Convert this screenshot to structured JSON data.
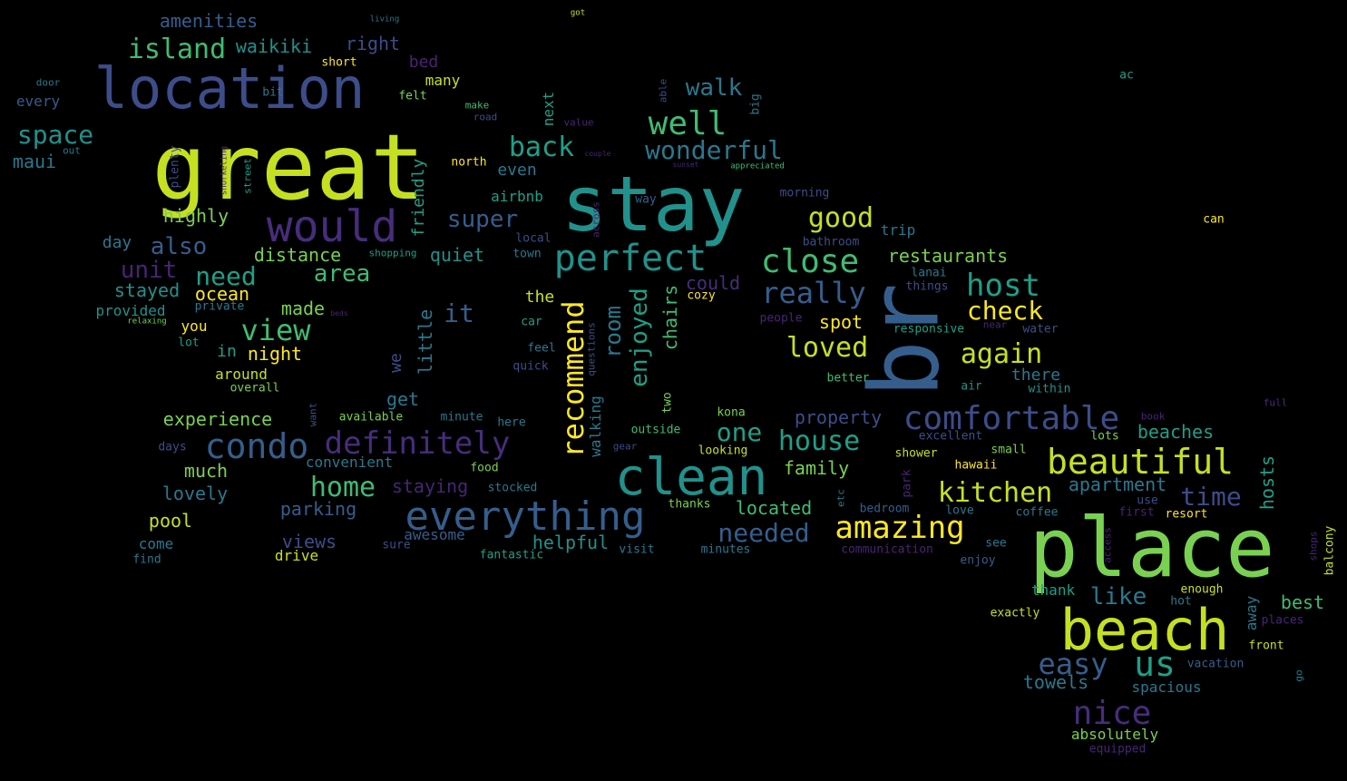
{
  "colors": {
    "background": "#000000",
    "palette": {
      "y": "#c5e021",
      "l": "#7ad151",
      "g": "#3fbc73",
      "t": "#1f9f88",
      "c": "#21918c",
      "s": "#2a788e",
      "b": "#355e8d",
      "i": "#3d4d8a",
      "p": "#472d7b",
      "d": "#482475",
      "o": "#fde725"
    }
  },
  "words": [
    {
      "text": "great",
      "color": "y"
    },
    {
      "text": "stay",
      "color": "c"
    },
    {
      "text": "place",
      "color": "l"
    },
    {
      "text": "br",
      "color": "b"
    },
    {
      "text": "location",
      "color": "i"
    },
    {
      "text": "beach",
      "color": "y"
    },
    {
      "text": "clean",
      "color": "c"
    },
    {
      "text": "would",
      "color": "p"
    },
    {
      "text": "everything",
      "color": "b"
    },
    {
      "text": "perfect",
      "color": "c"
    },
    {
      "text": "recommend",
      "color": "o"
    },
    {
      "text": "nice",
      "color": "p"
    },
    {
      "text": "comfortable",
      "color": "i"
    },
    {
      "text": "beautiful",
      "color": "y"
    },
    {
      "text": "condo",
      "color": "b"
    },
    {
      "text": "definitely",
      "color": "p"
    },
    {
      "text": "amazing",
      "color": "o"
    },
    {
      "text": "us",
      "color": "t"
    },
    {
      "text": "easy",
      "color": "b"
    },
    {
      "text": "close",
      "color": "g"
    },
    {
      "text": "well",
      "color": "g"
    },
    {
      "text": "host",
      "color": "t"
    },
    {
      "text": "really",
      "color": "b"
    },
    {
      "text": "view",
      "color": "g"
    },
    {
      "text": "kitchen",
      "color": "y"
    },
    {
      "text": "wonderful",
      "color": "s"
    },
    {
      "text": "back",
      "color": "t"
    },
    {
      "text": "island",
      "color": "g"
    },
    {
      "text": "space",
      "color": "c"
    },
    {
      "text": "house",
      "color": "t"
    },
    {
      "text": "time",
      "color": "i"
    },
    {
      "text": "home",
      "color": "g"
    },
    {
      "text": "needed",
      "color": "b"
    },
    {
      "text": "check",
      "color": "o"
    },
    {
      "text": "again",
      "color": "y"
    },
    {
      "text": "loved",
      "color": "y"
    },
    {
      "text": "good",
      "color": "y"
    },
    {
      "text": "like",
      "color": "s"
    },
    {
      "text": "super",
      "color": "b"
    },
    {
      "text": "walk",
      "color": "s"
    },
    {
      "text": "also",
      "color": "b"
    },
    {
      "text": "need",
      "color": "t"
    },
    {
      "text": "area",
      "color": "g"
    },
    {
      "text": "one",
      "color": "t"
    },
    {
      "text": "enjoyed",
      "color": "t"
    },
    {
      "text": "room",
      "color": "s"
    },
    {
      "text": "it",
      "color": "b"
    },
    {
      "text": "unit",
      "color": "d"
    },
    {
      "text": "amenities",
      "color": "b"
    },
    {
      "text": "waikiki",
      "color": "c"
    },
    {
      "text": "right",
      "color": "i"
    },
    {
      "text": "restaurants",
      "color": "l"
    },
    {
      "text": "beaches",
      "color": "t"
    },
    {
      "text": "hosts",
      "color": "t"
    },
    {
      "text": "apartment",
      "color": "s"
    },
    {
      "text": "property",
      "color": "i"
    },
    {
      "text": "family",
      "color": "l"
    },
    {
      "text": "located",
      "color": "g"
    },
    {
      "text": "helpful",
      "color": "c"
    },
    {
      "text": "distance",
      "color": "l"
    },
    {
      "text": "quiet",
      "color": "c"
    },
    {
      "text": "highly",
      "color": "l"
    },
    {
      "text": "maui",
      "color": "s"
    },
    {
      "text": "stayed",
      "color": "c"
    },
    {
      "text": "ocean",
      "color": "o"
    },
    {
      "text": "made",
      "color": "l"
    },
    {
      "text": "night",
      "color": "o"
    },
    {
      "text": "experience",
      "color": "l"
    },
    {
      "text": "much",
      "color": "l"
    },
    {
      "text": "lovely",
      "color": "s"
    },
    {
      "text": "pool",
      "color": "y"
    },
    {
      "text": "parking",
      "color": "b"
    },
    {
      "text": "views",
      "color": "i"
    },
    {
      "text": "drive",
      "color": "y"
    },
    {
      "text": "staying",
      "color": "d"
    },
    {
      "text": "chairs",
      "color": "g"
    },
    {
      "text": "walking",
      "color": "s"
    },
    {
      "text": "little",
      "color": "s"
    },
    {
      "text": "friendly",
      "color": "t"
    },
    {
      "text": "spot",
      "color": "o"
    },
    {
      "text": "best",
      "color": "g"
    },
    {
      "text": "towels",
      "color": "s"
    },
    {
      "text": "spacious",
      "color": "s"
    },
    {
      "text": "get",
      "color": "s"
    },
    {
      "text": "could",
      "color": "p"
    },
    {
      "text": "trip",
      "color": "s"
    },
    {
      "text": "day",
      "color": "s"
    },
    {
      "text": "even",
      "color": "s"
    },
    {
      "text": "airbnb",
      "color": "t"
    },
    {
      "text": "bed",
      "color": "d"
    },
    {
      "text": "there",
      "color": "s"
    },
    {
      "text": "lanai",
      "color": "s"
    },
    {
      "text": "things",
      "color": "i"
    },
    {
      "text": "responsive",
      "color": "t"
    },
    {
      "text": "we",
      "color": "i"
    },
    {
      "text": "in",
      "color": "t"
    },
    {
      "text": "you",
      "color": "o"
    },
    {
      "text": "around",
      "color": "y"
    },
    {
      "text": "overall",
      "color": "l"
    },
    {
      "text": "provided",
      "color": "c"
    },
    {
      "text": "private",
      "color": "s"
    },
    {
      "text": "the",
      "color": "y"
    },
    {
      "text": "plenty",
      "color": "i"
    },
    {
      "text": "street",
      "color": "t"
    },
    {
      "text": "snorkeling",
      "color": "p"
    },
    {
      "text": "short",
      "color": "o"
    },
    {
      "text": "many",
      "color": "y"
    },
    {
      "text": "felt",
      "color": "l"
    },
    {
      "text": "bit",
      "color": "s"
    },
    {
      "text": "door",
      "color": "s"
    },
    {
      "text": "every",
      "color": "b"
    },
    {
      "text": "out",
      "color": "s"
    },
    {
      "text": "make",
      "color": "g"
    },
    {
      "text": "road",
      "color": "i"
    },
    {
      "text": "next",
      "color": "t"
    },
    {
      "text": "able",
      "color": "i"
    },
    {
      "text": "big",
      "color": "s"
    },
    {
      "text": "value",
      "color": "d"
    },
    {
      "text": "couple",
      "color": "d"
    },
    {
      "text": "sunset",
      "color": "d"
    },
    {
      "text": "appreciated",
      "color": "g"
    },
    {
      "text": "north",
      "color": "o"
    },
    {
      "text": "way",
      "color": "b"
    },
    {
      "text": "morning",
      "color": "i"
    },
    {
      "text": "across",
      "color": "d"
    },
    {
      "text": "local",
      "color": "i"
    },
    {
      "text": "town",
      "color": "s"
    },
    {
      "text": "shopping",
      "color": "t"
    },
    {
      "text": "bathroom",
      "color": "i"
    },
    {
      "text": "cozy",
      "color": "o"
    },
    {
      "text": "people",
      "color": "d"
    },
    {
      "text": "car",
      "color": "t"
    },
    {
      "text": "feel",
      "color": "s"
    },
    {
      "text": "quick",
      "color": "i"
    },
    {
      "text": "questions",
      "color": "i"
    },
    {
      "text": "two",
      "color": "l"
    },
    {
      "text": "better",
      "color": "g"
    },
    {
      "text": "air",
      "color": "c"
    },
    {
      "text": "within",
      "color": "c"
    },
    {
      "text": "water",
      "color": "i"
    },
    {
      "text": "near",
      "color": "d"
    },
    {
      "text": "kona",
      "color": "l"
    },
    {
      "text": "outside",
      "color": "g"
    },
    {
      "text": "looking",
      "color": "y"
    },
    {
      "text": "gear",
      "color": "i"
    },
    {
      "text": "excellent",
      "color": "i"
    },
    {
      "text": "lots",
      "color": "l"
    },
    {
      "text": "small",
      "color": "l"
    },
    {
      "text": "shower",
      "color": "y"
    },
    {
      "text": "hawaii",
      "color": "o"
    },
    {
      "text": "park",
      "color": "d"
    },
    {
      "text": "etc",
      "color": "s"
    },
    {
      "text": "bedroom",
      "color": "b"
    },
    {
      "text": "love",
      "color": "s"
    },
    {
      "text": "coffee",
      "color": "s"
    },
    {
      "text": "first",
      "color": "d"
    },
    {
      "text": "resort",
      "color": "o"
    },
    {
      "text": "use",
      "color": "i"
    },
    {
      "text": "access",
      "color": "d"
    },
    {
      "text": "book",
      "color": "d"
    },
    {
      "text": "full",
      "color": "p"
    },
    {
      "text": "shops",
      "color": "d"
    },
    {
      "text": "balcony",
      "color": "y"
    },
    {
      "text": "communication",
      "color": "d"
    },
    {
      "text": "see",
      "color": "s"
    },
    {
      "text": "enjoy",
      "color": "b"
    },
    {
      "text": "thank",
      "color": "t"
    },
    {
      "text": "enough",
      "color": "y"
    },
    {
      "text": "hot",
      "color": "s"
    },
    {
      "text": "away",
      "color": "s"
    },
    {
      "text": "places",
      "color": "d"
    },
    {
      "text": "exactly",
      "color": "y"
    },
    {
      "text": "front",
      "color": "y"
    },
    {
      "text": "vacation",
      "color": "b"
    },
    {
      "text": "go",
      "color": "s"
    },
    {
      "text": "absolutely",
      "color": "l"
    },
    {
      "text": "equipped",
      "color": "d"
    },
    {
      "text": "convenient",
      "color": "s"
    },
    {
      "text": "food",
      "color": "l"
    },
    {
      "text": "stocked",
      "color": "s"
    },
    {
      "text": "awesome",
      "color": "b"
    },
    {
      "text": "sure",
      "color": "i"
    },
    {
      "text": "fantastic",
      "color": "t"
    },
    {
      "text": "visit",
      "color": "s"
    },
    {
      "text": "minutes",
      "color": "s"
    },
    {
      "text": "thanks",
      "color": "l"
    },
    {
      "text": "available",
      "color": "l"
    },
    {
      "text": "minute",
      "color": "s"
    },
    {
      "text": "here",
      "color": "s"
    },
    {
      "text": "days",
      "color": "i"
    },
    {
      "text": "want",
      "color": "i"
    },
    {
      "text": "come",
      "color": "s"
    },
    {
      "text": "find",
      "color": "s"
    },
    {
      "text": "lot",
      "color": "t"
    },
    {
      "text": "relaxing",
      "color": "l"
    },
    {
      "text": "beds",
      "color": "d"
    },
    {
      "text": "living",
      "color": "s"
    },
    {
      "text": "got",
      "color": "y"
    },
    {
      "text": "ac",
      "color": "t"
    },
    {
      "text": "can",
      "color": "o"
    }
  ]
}
